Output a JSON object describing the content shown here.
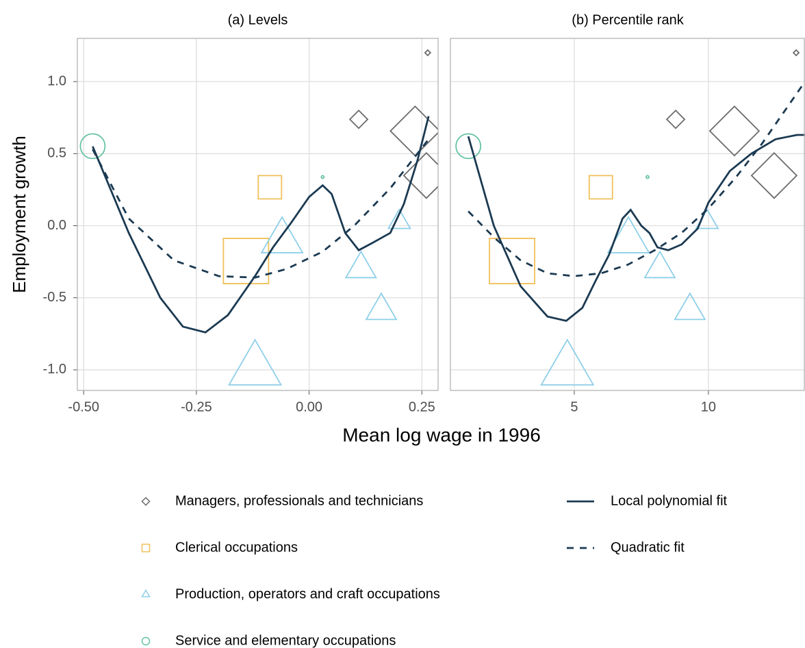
{
  "chart_data": [
    {
      "type": "scatter",
      "title": "(a) Levels",
      "ylabel": "Employment growth",
      "xlabel": "Mean log wage in 1996",
      "xlim": [
        -0.514,
        0.286
      ],
      "ylim": [
        -1.143,
        1.3
      ],
      "xticks": [
        {
          "value": -0.5,
          "label": "-0.50"
        },
        -0.25,
        {
          "value": 0,
          "label": "0.00"
        },
        0.25
      ],
      "yticks": [
        {
          "value": -1,
          "label": "-1.0"
        },
        -0.5,
        {
          "value": 0,
          "label": "0.0"
        },
        0.5,
        {
          "value": 1,
          "label": "1.0"
        }
      ],
      "grid": true,
      "series": [
        {
          "name": "Managers, professionals and technicians",
          "marker": "diamond",
          "color": "#6b6b6b",
          "x": [
            0.263,
            0.11,
            0.235,
            0.26
          ],
          "values": [
            1.2,
            0.738,
            0.657,
            0.348
          ],
          "sizes": [
            4,
            13,
            36,
            33
          ]
        },
        {
          "name": "Clerical occupations",
          "marker": "square",
          "color": "#f0c05a",
          "x": [
            -0.087,
            -0.14
          ],
          "values": [
            0.267,
            -0.245
          ],
          "sizes": [
            17,
            33
          ]
        },
        {
          "name": "Production, operators and craft occupations",
          "marker": "triangle",
          "color": "#8ecfe8",
          "x": [
            -0.06,
            0.2,
            0.115,
            0.16,
            -0.12
          ],
          "values": [
            -0.105,
            0.025,
            -0.3,
            -0.59,
            -1.0
          ],
          "sizes": [
            30,
            16,
            22,
            22,
            38
          ]
        },
        {
          "name": "Service and elementary occupations",
          "marker": "circle",
          "color": "#66c2a5",
          "x": [
            -0.48,
            0.03
          ],
          "values": [
            0.552,
            0.338
          ],
          "sizes": [
            18,
            2
          ]
        },
        {
          "name": "Local polynomial fit",
          "marker": "line",
          "dash": false,
          "color": "#1b3a52",
          "x": [
            -0.48,
            -0.4,
            -0.33,
            -0.28,
            -0.23,
            -0.18,
            -0.12,
            -0.08,
            -0.04,
            0,
            0.03,
            0.05,
            0.08,
            0.11,
            0.14,
            0.18,
            0.21,
            0.24,
            0.265
          ],
          "values": [
            0.55,
            -0.05,
            -0.5,
            -0.7,
            -0.74,
            -0.62,
            -0.35,
            -0.15,
            0.02,
            0.2,
            0.28,
            0.22,
            -0.05,
            -0.17,
            -0.12,
            -0.05,
            0.15,
            0.45,
            0.76
          ]
        },
        {
          "name": "Quadratic fit",
          "marker": "line",
          "dash": true,
          "color": "#1b3a52",
          "x": [
            -0.48,
            -0.4,
            -0.3,
            -0.2,
            -0.12,
            -0.05,
            0.03,
            0.1,
            0.18,
            0.265
          ],
          "values": [
            0.53,
            0.05,
            -0.24,
            -0.35,
            -0.36,
            -0.3,
            -0.18,
            0,
            0.26,
            0.6
          ]
        }
      ]
    },
    {
      "type": "scatter",
      "title": "(b) Percentile rank",
      "xlim": [
        0.383,
        13.6
      ],
      "ylim": [
        -1.143,
        1.3
      ],
      "xticks": [
        5,
        10
      ],
      "yticks": [
        -1,
        -0.5,
        0,
        0.5,
        1
      ],
      "grid": true,
      "series": [
        {
          "marker": "diamond",
          "color": "#6b6b6b",
          "x": [
            13.27,
            8.78,
            10.97,
            12.45
          ],
          "values": [
            1.2,
            0.738,
            0.657,
            0.348
          ],
          "sizes": [
            4,
            13,
            36,
            33
          ]
        },
        {
          "marker": "square",
          "color": "#f0c05a",
          "x": [
            5.99,
            2.68
          ],
          "values": [
            0.267,
            -0.245
          ],
          "sizes": [
            17,
            33
          ]
        },
        {
          "marker": "triangle",
          "color": "#8ecfe8",
          "x": [
            7.02,
            9.95,
            8.19,
            9.31,
            4.74
          ],
          "values": [
            -0.105,
            0.025,
            -0.3,
            -0.59,
            -1.0
          ],
          "sizes": [
            30,
            16,
            22,
            22,
            38
          ]
        },
        {
          "marker": "circle",
          "color": "#66c2a5",
          "x": [
            1.05,
            7.73
          ],
          "values": [
            0.552,
            0.338
          ],
          "sizes": [
            18,
            2
          ]
        },
        {
          "marker": "line",
          "dash": false,
          "color": "#1b3a52",
          "x": [
            1.05,
            2,
            3,
            4,
            4.7,
            5.3,
            5.8,
            6.3,
            6.8,
            7.1,
            7.5,
            7.8,
            8.1,
            8.5,
            9,
            9.6,
            10,
            10.8,
            11.6,
            12.5,
            13.3,
            13.6
          ],
          "values": [
            0.62,
            0,
            -0.42,
            -0.63,
            -0.66,
            -0.57,
            -0.38,
            -0.2,
            0.05,
            0.11,
            0,
            -0.05,
            -0.15,
            -0.17,
            -0.13,
            -0.02,
            0.16,
            0.38,
            0.5,
            0.6,
            0.63,
            0.63
          ]
        },
        {
          "marker": "line",
          "dash": true,
          "color": "#1b3a52",
          "x": [
            1.05,
            2,
            3,
            4,
            5,
            6,
            7,
            8,
            9,
            10,
            11,
            12,
            13.6
          ],
          "values": [
            0.1,
            -0.08,
            -0.24,
            -0.33,
            -0.35,
            -0.33,
            -0.27,
            -0.17,
            -0.05,
            0.12,
            0.33,
            0.57,
            1.0
          ]
        }
      ]
    }
  ]
}
